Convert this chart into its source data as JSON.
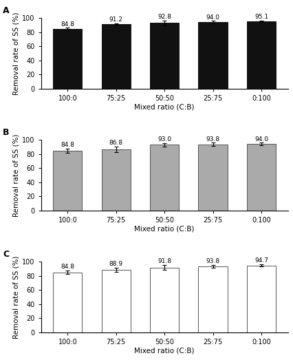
{
  "panels": [
    {
      "label": "A",
      "face_color": "#111111",
      "edge_color": "#111111",
      "values": [
        84.8,
        91.2,
        92.8,
        94.0,
        95.1
      ],
      "errors": [
        1.2,
        1.2,
        3.2,
        1.8,
        1.2
      ]
    },
    {
      "label": "B",
      "face_color": "#aaaaaa",
      "edge_color": "#555555",
      "values": [
        84.8,
        86.8,
        93.0,
        93.8,
        94.0
      ],
      "errors": [
        3.0,
        4.0,
        2.5,
        2.0,
        1.8
      ]
    },
    {
      "label": "C",
      "face_color": "#ffffff",
      "edge_color": "#555555",
      "values": [
        84.8,
        88.9,
        91.8,
        93.8,
        94.7
      ],
      "errors": [
        2.5,
        3.0,
        3.5,
        2.0,
        1.5
      ]
    }
  ],
  "categories": [
    "100:0",
    "75:25",
    "50:50",
    "25:75",
    "0:100"
  ],
  "xlabel": "Mixed ratio (C:B)",
  "ylabel": "Removal rate of SS (%)",
  "ylim": [
    0,
    100
  ],
  "yticks": [
    0,
    20,
    40,
    60,
    80,
    100
  ],
  "value_fontsize": 6.5,
  "label_fontsize": 7.5,
  "tick_fontsize": 7,
  "panel_label_fontsize": 9
}
